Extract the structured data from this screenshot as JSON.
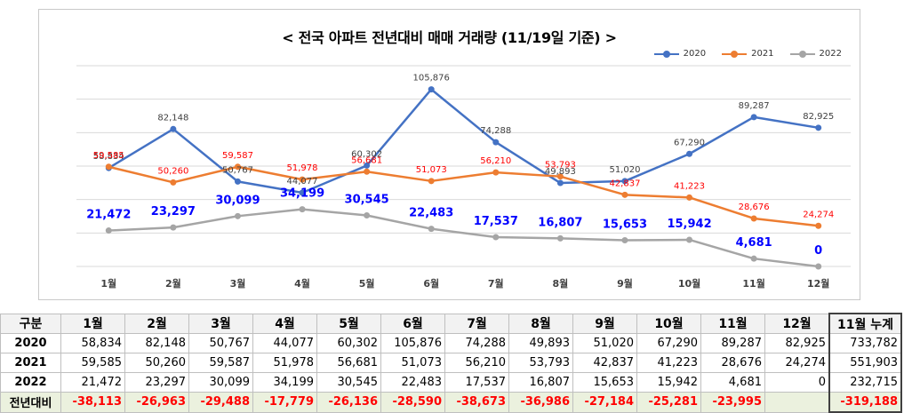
{
  "chart_data": {
    "type": "line",
    "title": "< 전국 아파트 전년대비 매매 거래량 (11/19일 기준) >",
    "categories": [
      "1월",
      "2월",
      "3월",
      "4월",
      "5월",
      "6월",
      "7월",
      "8월",
      "9월",
      "10월",
      "11월",
      "12월"
    ],
    "ylim": [
      0,
      120000
    ],
    "grid": true,
    "legend": "top-right",
    "series": [
      {
        "name": "2020",
        "color": "#4472c4",
        "values": [
          58834,
          82148,
          50767,
          44077,
          60302,
          105876,
          74288,
          49893,
          51020,
          67290,
          89287,
          82925
        ]
      },
      {
        "name": "2021",
        "color": "#ed7d31",
        "values": [
          59585,
          50260,
          59587,
          51978,
          56681,
          51073,
          56210,
          53793,
          42837,
          41223,
          28676,
          24274
        ]
      },
      {
        "name": "2022",
        "color": "#a5a5a5",
        "values": [
          21472,
          23297,
          30099,
          34199,
          30545,
          22483,
          17537,
          16807,
          15653,
          15942,
          4681,
          0
        ]
      }
    ],
    "label_colors": {
      "2020": "#404040",
      "2021": "#ff0000",
      "2022": "#0000ff"
    }
  },
  "table": {
    "header": [
      "구분",
      "1월",
      "2월",
      "3월",
      "4월",
      "5월",
      "6월",
      "7월",
      "8월",
      "9월",
      "10월",
      "11월",
      "12월",
      "11월 누계"
    ],
    "rows": [
      [
        "2020",
        "58,834",
        "82,148",
        "50,767",
        "44,077",
        "60,302",
        "105,876",
        "74,288",
        "49,893",
        "51,020",
        "67,290",
        "89,287",
        "82,925",
        "733,782"
      ],
      [
        "2021",
        "59,585",
        "50,260",
        "59,587",
        "51,978",
        "56,681",
        "51,073",
        "56,210",
        "53,793",
        "42,837",
        "41,223",
        "28,676",
        "24,274",
        "551,903"
      ],
      [
        "2022",
        "21,472",
        "23,297",
        "30,099",
        "34,199",
        "30,545",
        "22,483",
        "17,537",
        "16,807",
        "15,653",
        "15,942",
        "4,681",
        "0",
        "232,715"
      ],
      [
        "전년대비",
        "-38,113",
        "-26,963",
        "-29,488",
        "-17,779",
        "-26,136",
        "-28,590",
        "-38,673",
        "-36,986",
        "-27,184",
        "-25,281",
        "-23,995",
        "",
        "-319,188"
      ]
    ]
  }
}
